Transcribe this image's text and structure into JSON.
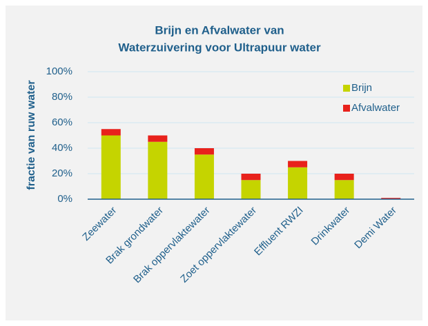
{
  "chart_data": {
    "type": "stacked_bar",
    "title": [
      "Brijn en Afvalwater van",
      "Waterzuivering voor Ultrapuur water"
    ],
    "y_label": "fractie van ruw water",
    "categories": [
      "Zeewater",
      "Brak grondwater",
      "Brak oppervlaktewater",
      "Zoet oppervlaktewater",
      "Effluent RWZI",
      "Drinkwater",
      "Demi Water"
    ],
    "series": [
      {
        "name": "Brijn",
        "color": "#c5d400",
        "values": [
          50,
          45,
          35,
          15,
          25,
          15,
          0
        ]
      },
      {
        "name": "Afvalwater",
        "color": "#e8221c",
        "values": [
          5,
          5,
          5,
          5,
          5,
          5,
          1
        ]
      }
    ],
    "ylim": [
      0,
      100
    ],
    "yticks": [
      {
        "value": 0,
        "label": "0%"
      },
      {
        "value": 20,
        "label": "20%"
      },
      {
        "value": 40,
        "label": "40%"
      },
      {
        "value": 60,
        "label": "60%"
      },
      {
        "value": 80,
        "label": "80%"
      },
      {
        "value": 100,
        "label": "100%"
      }
    ],
    "grid": true,
    "legend": "upper right"
  }
}
